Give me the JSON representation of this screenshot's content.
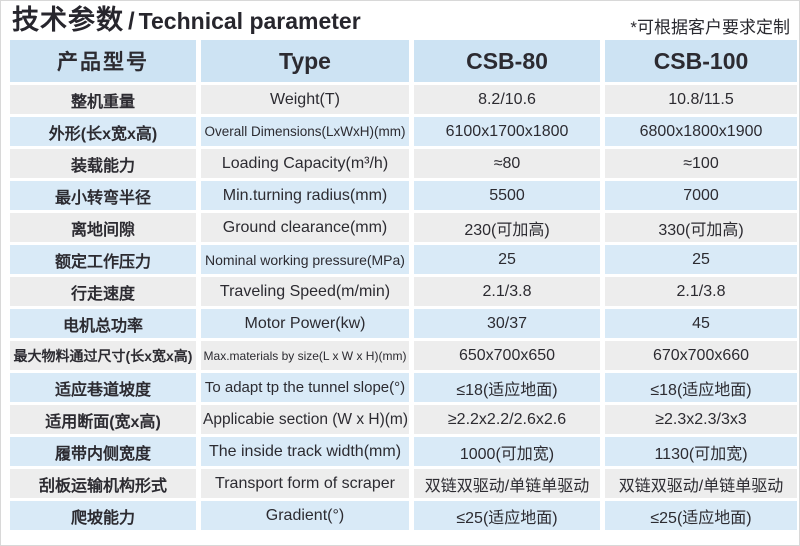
{
  "title": {
    "zh": "技术参数",
    "separator": "/",
    "en": "Technical parameter"
  },
  "note": "*可根据客户要求定制",
  "colors": {
    "header-bg": "#cde3f3",
    "row-blue": "#d9eaf7",
    "row-gray": "#ededed",
    "text": "#29282e"
  },
  "table": {
    "headers": [
      "产品型号",
      "Type",
      "CSB-80",
      "CSB-100"
    ],
    "rows": [
      {
        "zh": "整机重量",
        "en": "Weight(T)",
        "csb80": "8.2/10.6",
        "csb100": "10.8/11.5"
      },
      {
        "zh": "外形(长x宽x高)",
        "en": "Overall Dimensions(LxWxH)(mm)",
        "csb80": "6100x1700x1800",
        "csb100": "6800x1800x1900"
      },
      {
        "zh": "装载能力",
        "en": "Loading Capacity(m³/h)",
        "csb80": "≈80",
        "csb100": "≈100"
      },
      {
        "zh": "最小转弯半径",
        "en": "Min.turning radius(mm)",
        "csb80": "5500",
        "csb100": "7000"
      },
      {
        "zh": "离地间隙",
        "en": "Ground clearance(mm)",
        "csb80": "230(可加高)",
        "csb100": "330(可加高)"
      },
      {
        "zh": "额定工作压力",
        "en": "Nominal working pressure(MPa)",
        "csb80": "25",
        "csb100": "25"
      },
      {
        "zh": "行走速度",
        "en": "Traveling Speed(m/min)",
        "csb80": "2.1/3.8",
        "csb100": "2.1/3.8"
      },
      {
        "zh": "电机总功率",
        "en": "Motor Power(kw)",
        "csb80": "30/37",
        "csb100": "45"
      },
      {
        "zh": "最大物料通过尺寸(长x宽x高)",
        "en": "Max.materials by size(L x W x H)(mm)",
        "csb80": "650x700x650",
        "csb100": "670x700x660"
      },
      {
        "zh": "适应巷道坡度",
        "en": "To adapt tp the tunnel slope(°)",
        "csb80": "≤18(适应地面)",
        "csb100": "≤18(适应地面)"
      },
      {
        "zh": "适用断面(宽x高)",
        "en": "Applicabie section (W x H)(m)",
        "csb80": "≥2.2x2.2/2.6x2.6",
        "csb100": "≥2.3x2.3/3x3"
      },
      {
        "zh": "履带内侧宽度",
        "en": "The inside track width(mm)",
        "csb80": "1000(可加宽)",
        "csb100": "1130(可加宽)"
      },
      {
        "zh": "刮板运输机构形式",
        "en": "Transport form of scraper",
        "csb80": "双链双驱动/单链单驱动",
        "csb100": "双链双驱动/单链单驱动"
      },
      {
        "zh": "爬坡能力",
        "en": "Gradient(°)",
        "csb80": "≤25(适应地面)",
        "csb100": "≤25(适应地面)"
      }
    ]
  }
}
